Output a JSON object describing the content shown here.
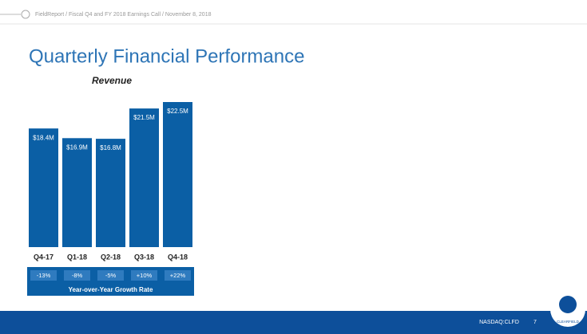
{
  "header": {
    "breadcrumb": "FieldReport / Fiscal Q4 and FY 2018 Earnings Call / November 8, 2018"
  },
  "slide_title": "Quarterly Financial Performance",
  "chart_data": {
    "type": "bar",
    "title": "Revenue",
    "categories": [
      "Q4-17",
      "Q1-18",
      "Q2-18",
      "Q3-18",
      "Q4-18"
    ],
    "values": [
      18.4,
      16.9,
      16.8,
      21.5,
      22.5
    ],
    "value_labels": [
      "$18.4M",
      "$16.9M",
      "$16.8M",
      "$21.5M",
      "$22.5M"
    ],
    "color": "#0b5fa5"
  },
  "growth": {
    "label": "Year-over-Year Growth Rate",
    "values": [
      "-13%",
      "-8%",
      "-5%",
      "+10%",
      "+22%"
    ]
  },
  "footer": {
    "ticker": "NASDAQ:CLFD",
    "page": "7",
    "logo": "CLEARFIELD"
  }
}
